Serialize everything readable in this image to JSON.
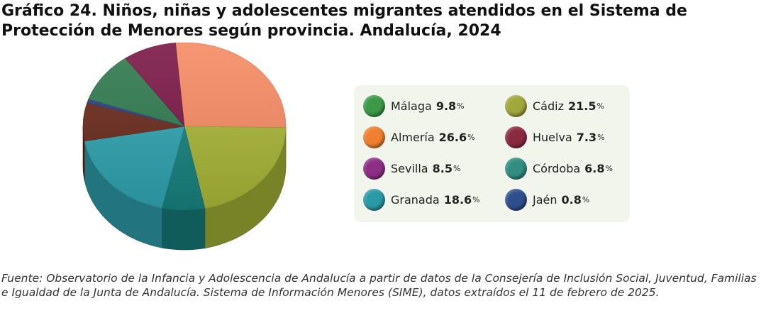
{
  "title": "Gráfico 24. Niños, niñas y adolescentes migrantes atendidos en el Sistema de Protección de Menores según provincia. Andalucía, 2024",
  "source": "Fuente: Observatorio de la Infancia y Adolescencia de Andalucía a partir de datos de la Consejería de Inclusión Social, Juventud, Familias e Igualdad de la Junta de Andalucía. Sistema de Información Menores (SIME), datos extraídos el 11 de febrero de 2025.",
  "chart_data": {
    "type": "pie",
    "title": "Gráfico 24. Niños, niñas y adolescentes migrantes atendidos en el Sistema de Protección de Menores según provincia. Andalucía, 2024",
    "unit": "%",
    "legend_position": "right",
    "categories": [
      "Málaga",
      "Almería",
      "Sevilla",
      "Granada",
      "Cádiz",
      "Huelva",
      "Córdoba",
      "Jaén"
    ],
    "values": [
      9.8,
      26.6,
      8.5,
      18.6,
      21.5,
      7.3,
      6.8,
      0.8
    ],
    "labels": [
      "9.8",
      "26.6",
      "8.5",
      "18.6",
      "21.5",
      "7.3",
      "6.8",
      "0.8"
    ],
    "pie_order": [
      "Almería",
      "Cádiz",
      "Córdoba",
      "Granada",
      "Huelva",
      "Jaén",
      "Málaga",
      "Sevilla"
    ],
    "colors": {
      "Málaga": "#2f7a4e",
      "Almería": "#f68a62",
      "Sevilla": "#7a1846",
      "Granada": "#2fa3b0",
      "Cádiz": "#a7b637",
      "Huelva": "#6a2a1c",
      "Córdoba": "#16807d",
      "Jaén": "#2e3e7c"
    },
    "legend_colors": {
      "Málaga": "#3c9a46",
      "Almería": "#f0802f",
      "Sevilla": "#8e2f86",
      "Granada": "#2b9aa6",
      "Cádiz": "#a0a83a",
      "Huelva": "#8a2a40",
      "Córdoba": "#2f8e80",
      "Jaén": "#2f4e8e"
    }
  }
}
